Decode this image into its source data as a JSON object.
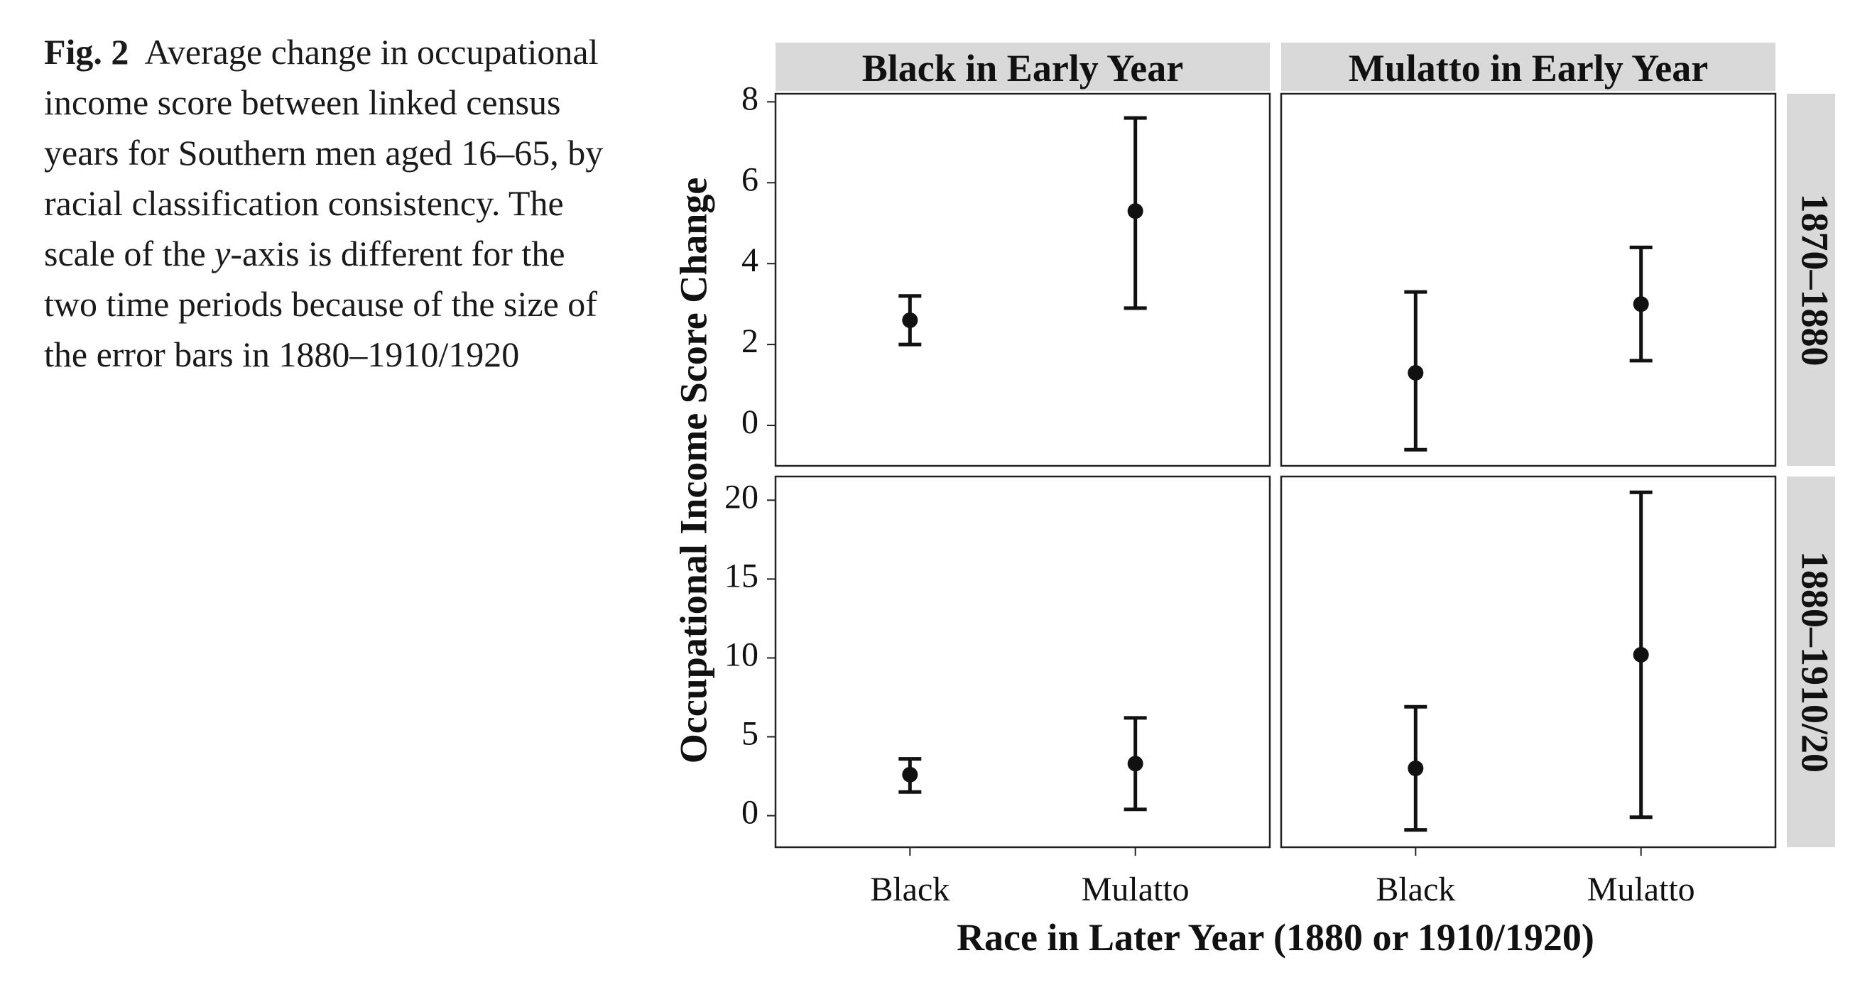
{
  "caption": {
    "label": "Fig. 2",
    "text_part1": "Average change in occupational income score between linked census years for Southern men aged 16–65, by racial classification consistency. The scale of the ",
    "text_italic": "y",
    "text_part2": "-axis is different for the two time periods because of the size of the error bars in 1880–1910/1920"
  },
  "chart_data": {
    "type": "errorbar",
    "layout": "facet-grid 2x2",
    "xlabel": "Race in Later Year (1880 or 1910/1920)",
    "ylabel": "Occupational Income Score Change",
    "categories": [
      "Black",
      "Mulatto"
    ],
    "columns": [
      "Black in Early Year",
      "Mulatto in Early Year"
    ],
    "rows": [
      {
        "label": "1870–1880",
        "ylim": [
          -1,
          8.2
        ],
        "yticks": [
          0,
          2,
          4,
          6,
          8
        ],
        "panels": [
          {
            "points": [
              {
                "x": "Black",
                "y": 2.6,
                "lower": 2.0,
                "upper": 3.2
              },
              {
                "x": "Mulatto",
                "y": 5.3,
                "lower": 2.9,
                "upper": 7.6
              }
            ]
          },
          {
            "points": [
              {
                "x": "Black",
                "y": 1.3,
                "lower": -0.6,
                "upper": 3.3
              },
              {
                "x": "Mulatto",
                "y": 3.0,
                "lower": 1.6,
                "upper": 4.4
              }
            ]
          }
        ]
      },
      {
        "label": "1880–1910/20",
        "ylim": [
          -2,
          21.5
        ],
        "yticks": [
          0,
          5,
          10,
          15,
          20
        ],
        "panels": [
          {
            "points": [
              {
                "x": "Black",
                "y": 2.6,
                "lower": 1.5,
                "upper": 3.6
              },
              {
                "x": "Mulatto",
                "y": 3.3,
                "lower": 0.4,
                "upper": 6.2
              }
            ]
          },
          {
            "points": [
              {
                "x": "Black",
                "y": 3.0,
                "lower": -0.9,
                "upper": 6.9
              },
              {
                "x": "Mulatto",
                "y": 10.2,
                "lower": -0.1,
                "upper": 20.5
              }
            ]
          }
        ]
      }
    ],
    "grid": false,
    "colors": {
      "strip": "#d9d9d9",
      "marks": "#111111",
      "panel_border": "#222222"
    }
  }
}
